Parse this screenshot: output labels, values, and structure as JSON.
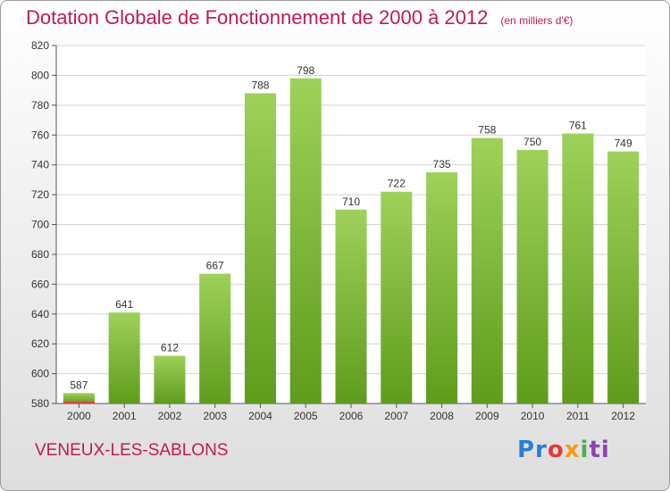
{
  "header": {
    "title": "Dotation Globale de Fonctionnement de 2000 à 2012",
    "unit": "(en milliers d'€)"
  },
  "footer": {
    "city": "VENEUX-LES-SABLONS",
    "brand_letters": [
      "Pr",
      "o",
      "x",
      "i",
      "ti"
    ]
  },
  "colors": {
    "title": "#c2185b",
    "bar_top": "#9ed15a",
    "bar_bottom": "#5f9c1c",
    "bar_highlight": "#e6403a"
  },
  "chart_data": {
    "type": "bar",
    "title": "Dotation Globale de Fonctionnement de 2000 à 2012",
    "subtitle": "(en milliers d'€)",
    "xlabel": "",
    "ylabel": "",
    "categories": [
      "2000",
      "2001",
      "2002",
      "2003",
      "2004",
      "2005",
      "2006",
      "2007",
      "2008",
      "2009",
      "2010",
      "2011",
      "2012"
    ],
    "values": [
      587,
      641,
      612,
      667,
      788,
      798,
      710,
      722,
      735,
      758,
      750,
      761,
      749
    ],
    "data_labels": [
      "587",
      "641",
      "612",
      "667",
      "788",
      "798",
      "710",
      "722",
      "735",
      "758",
      "750",
      "761",
      "749"
    ],
    "ylim": [
      580,
      820
    ],
    "yticks": [
      580,
      600,
      620,
      640,
      660,
      680,
      700,
      720,
      740,
      760,
      780,
      800,
      820
    ],
    "ytick_labels": [
      "580",
      "600",
      "620",
      "640",
      "660",
      "680",
      "700",
      "720",
      "740",
      "760",
      "780",
      "800",
      "820"
    ],
    "grid": true,
    "legend": "none"
  }
}
